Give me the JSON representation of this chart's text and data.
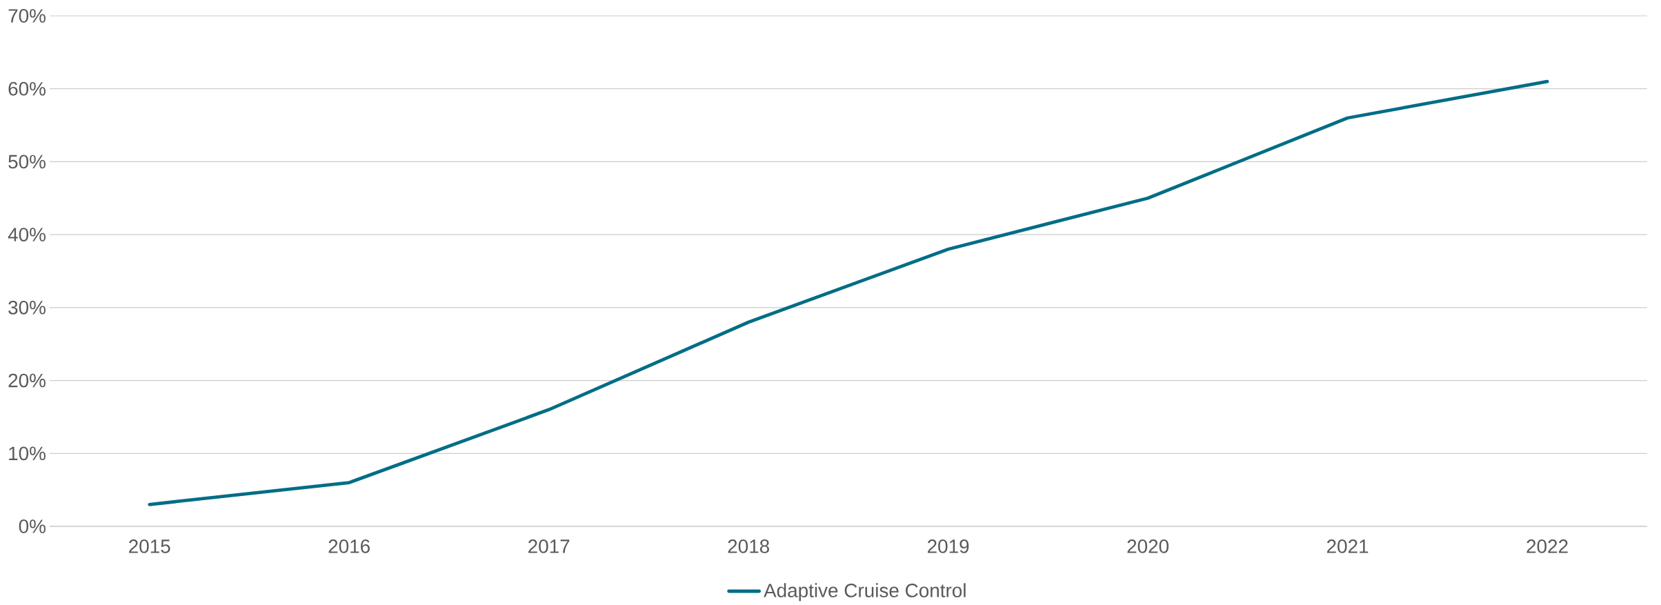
{
  "chart_data": {
    "type": "line",
    "categories": [
      "2015",
      "2016",
      "2017",
      "2018",
      "2019",
      "2020",
      "2021",
      "2022"
    ],
    "series": [
      {
        "name": "Adaptive Cruise Control",
        "color": "#006d86",
        "values": [
          3,
          6,
          16,
          28,
          38,
          45,
          56,
          61
        ]
      }
    ],
    "ylim": [
      0,
      70
    ],
    "yticks": [
      {
        "value": 0,
        "label": "0%"
      },
      {
        "value": 10,
        "label": "10%"
      },
      {
        "value": 20,
        "label": "20%"
      },
      {
        "value": 30,
        "label": "30%"
      },
      {
        "value": 40,
        "label": "40%"
      },
      {
        "value": 50,
        "label": "50%"
      },
      {
        "value": 60,
        "label": "60%"
      },
      {
        "value": 70,
        "label": "70%"
      }
    ],
    "grid": "y",
    "legend": "bottom",
    "marker": "none",
    "line_style": "solid"
  }
}
